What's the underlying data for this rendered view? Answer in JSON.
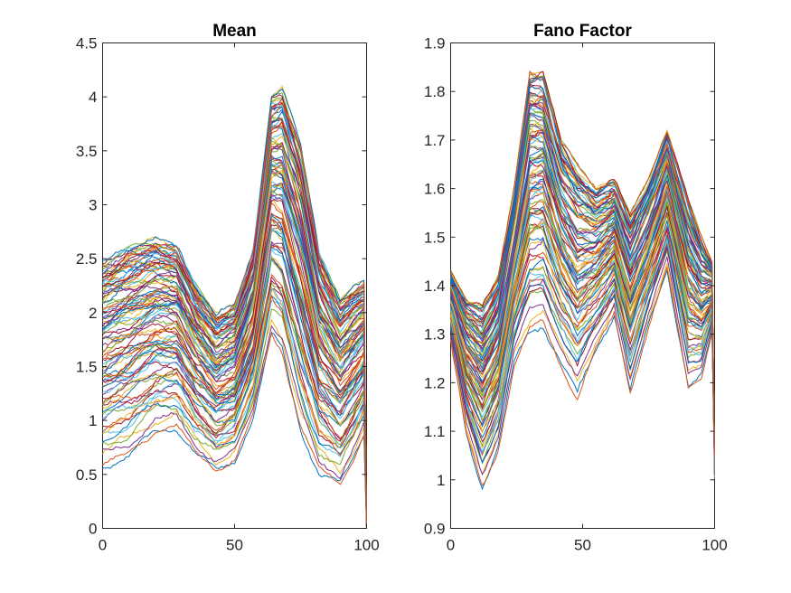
{
  "chart_data": [
    {
      "type": "line",
      "title": "Mean",
      "xlabel": "",
      "ylabel": "",
      "xlim": [
        0,
        100
      ],
      "ylim": [
        0,
        4.5
      ],
      "xticks": [
        "0",
        "50",
        "100"
      ],
      "yticks": [
        "0",
        "0.5",
        "1",
        "1.5",
        "2",
        "2.5",
        "3",
        "3.5",
        "4",
        "4.5"
      ],
      "series_count": 100,
      "envelope_x": [
        0,
        10,
        20,
        28,
        35,
        43,
        50,
        57,
        64,
        68,
        75,
        82,
        90,
        95,
        99,
        100
      ],
      "envelope_lower": [
        0.48,
        0.55,
        0.8,
        0.85,
        0.6,
        0.45,
        0.55,
        0.95,
        1.65,
        1.5,
        0.8,
        0.4,
        0.3,
        0.55,
        0.8,
        0.0
      ],
      "envelope_upper": [
        2.5,
        2.65,
        2.7,
        2.65,
        2.3,
        2.0,
        2.1,
        2.6,
        4.05,
        4.1,
        3.6,
        2.6,
        2.15,
        2.25,
        2.3,
        0.05
      ],
      "grid": false,
      "legend": "none"
    },
    {
      "type": "line",
      "title": "Fano Factor",
      "xlabel": "",
      "ylabel": "",
      "xlim": [
        0,
        100
      ],
      "ylim": [
        0.9,
        1.9
      ],
      "xticks": [
        "0",
        "50",
        "100"
      ],
      "yticks": [
        "0.9",
        "1",
        "1.1",
        "1.2",
        "1.3",
        "1.4",
        "1.5",
        "1.6",
        "1.7",
        "1.8",
        "1.9"
      ],
      "series_count": 100,
      "envelope_x": [
        0,
        6,
        12,
        18,
        24,
        30,
        35,
        42,
        48,
        55,
        62,
        68,
        75,
        82,
        90,
        95,
        99,
        100
      ],
      "envelope_lower": [
        1.28,
        1.08,
        0.97,
        1.05,
        1.22,
        1.28,
        1.3,
        1.22,
        1.15,
        1.25,
        1.33,
        1.17,
        1.3,
        1.42,
        1.18,
        1.2,
        1.3,
        1.0
      ],
      "envelope_upper": [
        1.43,
        1.37,
        1.36,
        1.42,
        1.6,
        1.84,
        1.84,
        1.7,
        1.65,
        1.6,
        1.62,
        1.55,
        1.62,
        1.72,
        1.58,
        1.5,
        1.45,
        1.05
      ],
      "grid": false,
      "legend": "none"
    }
  ],
  "colors": [
    "#0072BD",
    "#D95319",
    "#EDB120",
    "#7E2F8E",
    "#77AC30",
    "#4DBEEE",
    "#A2142F"
  ]
}
